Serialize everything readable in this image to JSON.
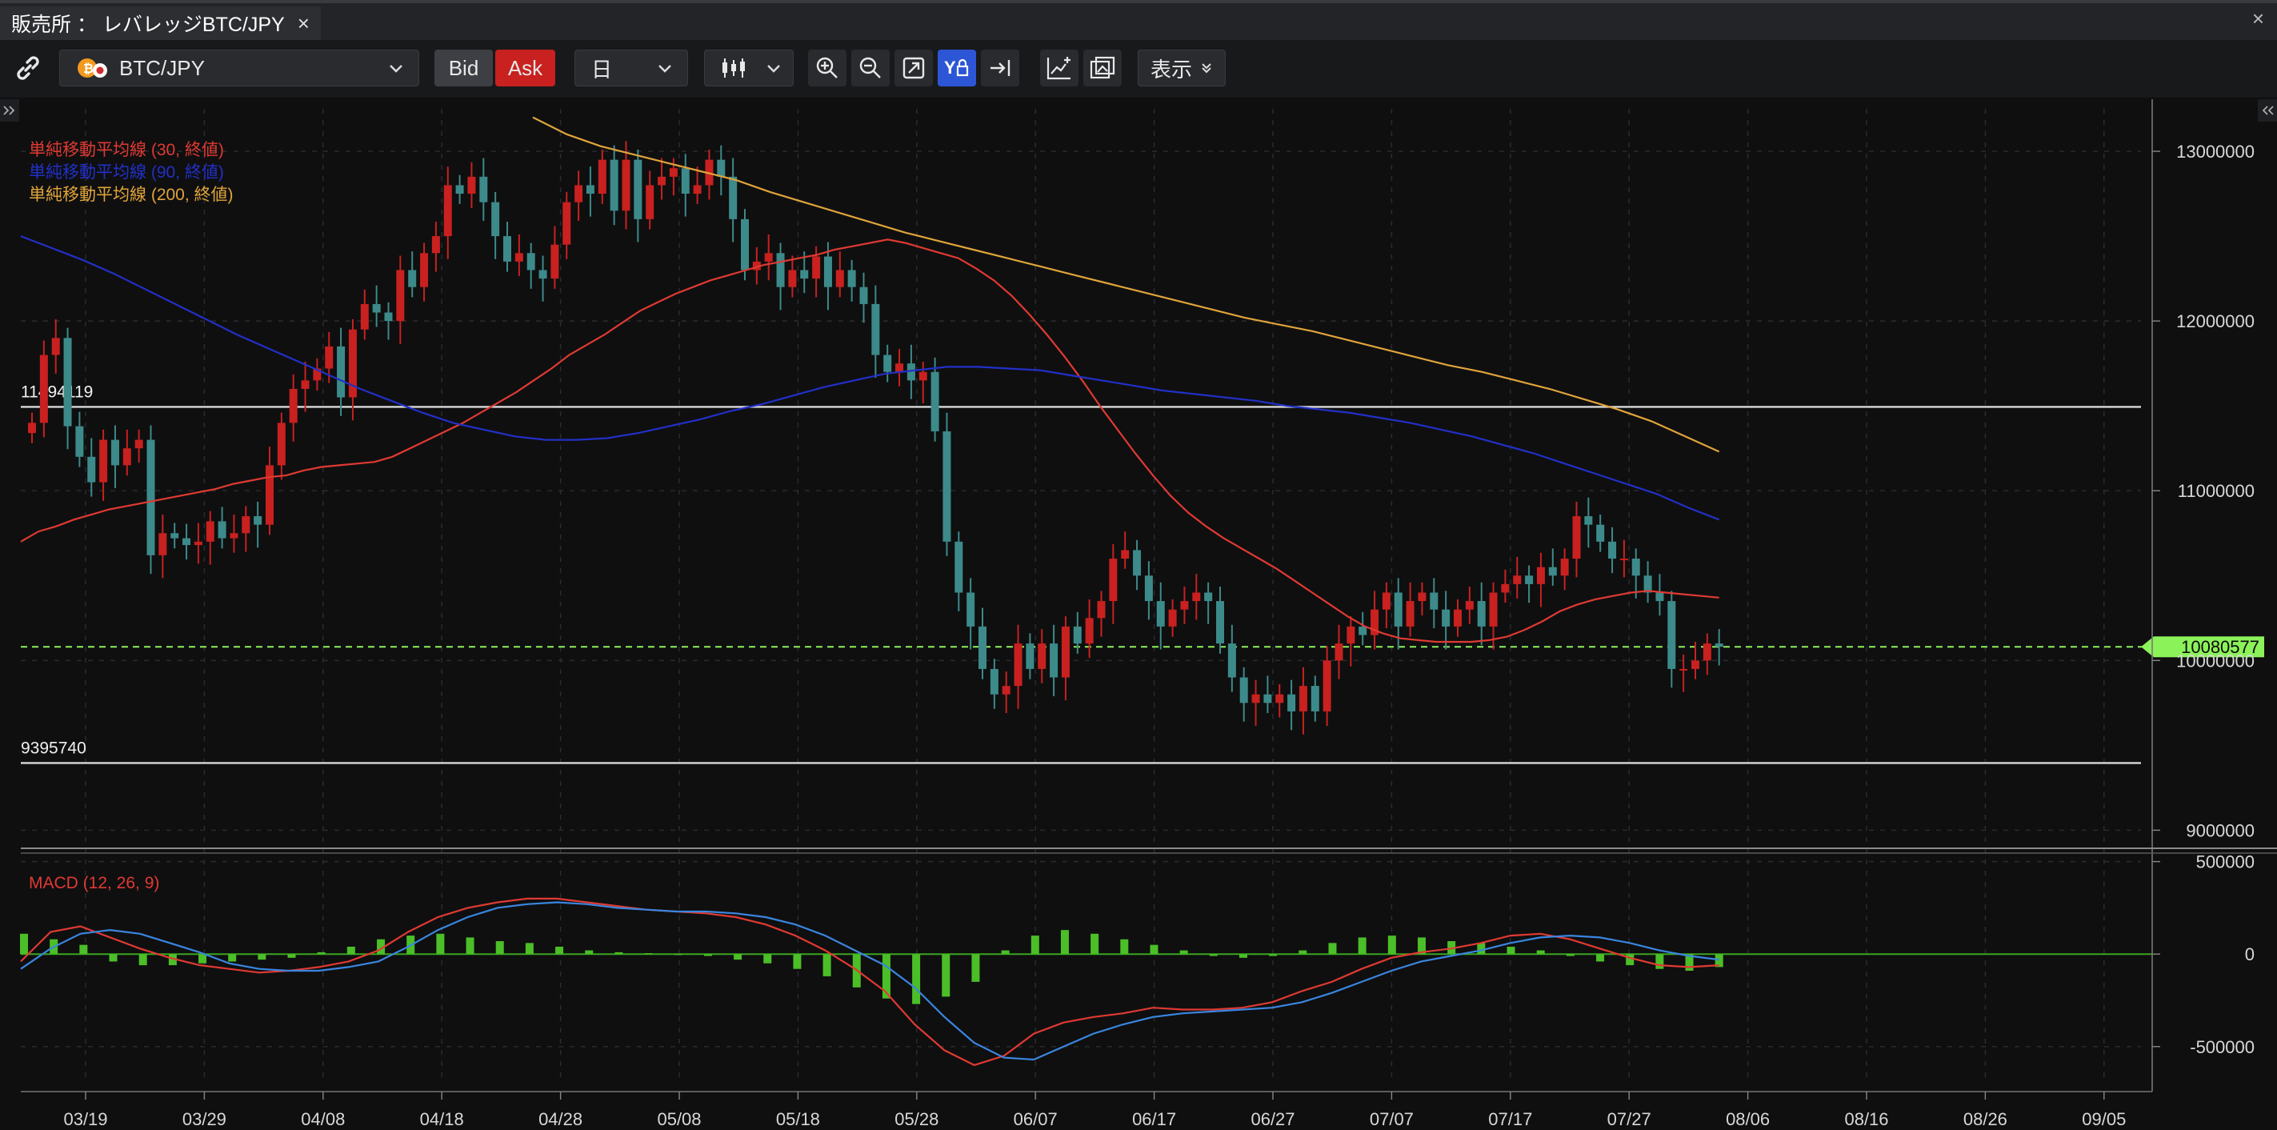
{
  "window": {
    "tab_title": "販売所 ： レバレッジBTC/JPY",
    "tab_close": "×",
    "window_close": "×"
  },
  "toolbar": {
    "symbol": "BTC/JPY",
    "bid_label": "Bid",
    "ask_label": "Ask",
    "period": "日",
    "display_label": "表示",
    "active_color": "#2c56d6",
    "ask_color": "#c8211f"
  },
  "chart_data": [
    {
      "type": "candlestick",
      "x_tick_labels": [
        "03/19",
        "03/29",
        "04/08",
        "04/18",
        "04/28",
        "05/08",
        "05/18",
        "05/28",
        "06/07",
        "06/17",
        "06/27",
        "07/07",
        "07/17",
        "07/27",
        "08/06",
        "08/16",
        "08/26",
        "09/05"
      ],
      "y_tick_labels": [
        "13000000",
        "12000000",
        "11000000",
        "10000000",
        "9000000"
      ],
      "ylim": [
        8950000,
        13250000
      ],
      "grid": true,
      "legend": [
        {
          "label": "単純移動平均線 (30, 終値)",
          "color": "#e03a32"
        },
        {
          "label": "単純移動平均線 (90, 終値)",
          "color": "#2230c8"
        },
        {
          "label": "単純移動平均線 (200, 終値)",
          "color": "#e0a43a"
        }
      ],
      "horizontal_lines": [
        {
          "label": "11494119",
          "value": 11494119
        },
        {
          "label": "9395740",
          "value": 9395740
        }
      ],
      "current_price": {
        "label": "10080577",
        "value": 10080577,
        "color": "#8cf25a"
      },
      "candle_colors": {
        "up": "#c8211f",
        "down": "#3d8a8a"
      },
      "closes": [
        11400000,
        11800000,
        11900000,
        11380000,
        11200000,
        11050000,
        11300000,
        11150000,
        11250000,
        11300000,
        10620000,
        10750000,
        10720000,
        10680000,
        10700000,
        10820000,
        10720000,
        10750000,
        10850000,
        10800000,
        11150000,
        11400000,
        11600000,
        11650000,
        11720000,
        11850000,
        11550000,
        11950000,
        12100000,
        12050000,
        12000000,
        12300000,
        12200000,
        12400000,
        12500000,
        12800000,
        12750000,
        12850000,
        12700000,
        12500000,
        12350000,
        12400000,
        12300000,
        12250000,
        12450000,
        12700000,
        12800000,
        12750000,
        12950000,
        12650000,
        12950000,
        12600000,
        12800000,
        12850000,
        12900000,
        12750000,
        12800000,
        12950000,
        12850000,
        12600000,
        12300000,
        12350000,
        12400000,
        12200000,
        12300000,
        12250000,
        12380000,
        12200000,
        12300000,
        12200000,
        12100000,
        11800000,
        11700000,
        11750000,
        11650000,
        11700000,
        11350000,
        10700000,
        10400000,
        10200000,
        9950000,
        9800000,
        9850000,
        10100000,
        9950000,
        10100000,
        9900000,
        10200000,
        10100000,
        10250000,
        10350000,
        10600000,
        10650000,
        10500000,
        10350000,
        10200000,
        10300000,
        10350000,
        10400000,
        10350000,
        10100000,
        9900000,
        9750000,
        9800000,
        9750000,
        9800000,
        9700000,
        9850000,
        9700000,
        10000000,
        10100000,
        10200000,
        10150000,
        10300000,
        10400000,
        10200000,
        10350000,
        10400000,
        10300000,
        10200000,
        10300000,
        10350000,
        10200000,
        10400000,
        10450000,
        10500000,
        10450000,
        10550000,
        10500000,
        10600000,
        10850000,
        10800000,
        10700000,
        10600000,
        10600000,
        10500000,
        10400000,
        10350000,
        9950000,
        9950000,
        10000000,
        10100000,
        10080577
      ],
      "ma30": [
        10700000,
        10760000,
        10790000,
        10830000,
        10860000,
        10890000,
        10910000,
        10930000,
        10950000,
        10970000,
        10990000,
        11010000,
        11040000,
        11060000,
        11080000,
        11090000,
        11120000,
        11140000,
        11150000,
        11160000,
        11170000,
        11200000,
        11250000,
        11300000,
        11350000,
        11400000,
        11460000,
        11520000,
        11580000,
        11650000,
        11720000,
        11800000,
        11860000,
        11920000,
        11990000,
        12060000,
        12110000,
        12160000,
        12200000,
        12240000,
        12270000,
        12300000,
        12330000,
        12350000,
        12370000,
        12390000,
        12420000,
        12440000,
        12460000,
        12480000,
        12460000,
        12430000,
        12400000,
        12370000,
        12310000,
        12240000,
        12150000,
        12040000,
        11920000,
        11790000,
        11650000,
        11500000,
        11360000,
        11220000,
        11090000,
        10970000,
        10870000,
        10790000,
        10720000,
        10660000,
        10600000,
        10540000,
        10470000,
        10400000,
        10330000,
        10260000,
        10200000,
        10160000,
        10130000,
        10120000,
        10110000,
        10110000,
        10110000,
        10120000,
        10140000,
        10180000,
        10230000,
        10290000,
        10330000,
        10360000,
        10380000,
        10400000,
        10410000,
        10400000,
        10390000,
        10380000,
        10370000
      ],
      "ma90": [
        12500000,
        12430000,
        12360000,
        12280000,
        12190000,
        12100000,
        12010000,
        11920000,
        11840000,
        11760000,
        11680000,
        11600000,
        11530000,
        11460000,
        11400000,
        11360000,
        11320000,
        11300000,
        11300000,
        11310000,
        11340000,
        11380000,
        11420000,
        11470000,
        11510000,
        11560000,
        11610000,
        11650000,
        11690000,
        11710000,
        11730000,
        11730000,
        11720000,
        11710000,
        11680000,
        11650000,
        11620000,
        11590000,
        11570000,
        11550000,
        11530000,
        11500000,
        11480000,
        11460000,
        11430000,
        11400000,
        11360000,
        11320000,
        11270000,
        11220000,
        11160000,
        11100000,
        11040000,
        10980000,
        10900000,
        10830000
      ],
      "ma200": [
        13200000,
        13100000,
        13030000,
        12980000,
        12930000,
        12880000,
        12830000,
        12760000,
        12700000,
        12640000,
        12580000,
        12520000,
        12470000,
        12420000,
        12370000,
        12320000,
        12270000,
        12220000,
        12170000,
        12120000,
        12070000,
        12020000,
        11980000,
        11940000,
        11890000,
        11840000,
        11790000,
        11740000,
        11700000,
        11650000,
        11600000,
        11540000,
        11480000,
        11410000,
        11320000,
        11230000
      ]
    },
    {
      "type": "macd",
      "label": "MACD (12, 26, 9)",
      "y_tick_labels": [
        "500000",
        "0",
        "-500000"
      ],
      "ylim": [
        -700000,
        520000
      ],
      "line_colors": {
        "macd": "#e03a32",
        "signal": "#3a86e0",
        "histogram": "#4bbe28"
      },
      "macd": [
        -40000,
        120000,
        150000,
        90000,
        30000,
        -20000,
        -60000,
        -80000,
        -100000,
        -90000,
        -70000,
        -40000,
        20000,
        120000,
        200000,
        250000,
        280000,
        300000,
        300000,
        280000,
        260000,
        240000,
        230000,
        220000,
        200000,
        160000,
        100000,
        20000,
        -80000,
        -200000,
        -380000,
        -520000,
        -600000,
        -550000,
        -430000,
        -370000,
        -340000,
        -320000,
        -290000,
        -300000,
        -300000,
        -290000,
        -260000,
        -200000,
        -150000,
        -80000,
        -20000,
        10000,
        30000,
        60000,
        100000,
        110000,
        80000,
        30000,
        -20000,
        -60000,
        -70000,
        -60000
      ],
      "signal": [
        -80000,
        30000,
        110000,
        130000,
        110000,
        60000,
        10000,
        -50000,
        -80000,
        -90000,
        -90000,
        -70000,
        -40000,
        40000,
        130000,
        200000,
        250000,
        270000,
        280000,
        270000,
        250000,
        240000,
        230000,
        230000,
        220000,
        200000,
        160000,
        100000,
        20000,
        -60000,
        -180000,
        -340000,
        -480000,
        -560000,
        -570000,
        -500000,
        -430000,
        -380000,
        -340000,
        -320000,
        -310000,
        -300000,
        -290000,
        -260000,
        -210000,
        -150000,
        -90000,
        -40000,
        -10000,
        20000,
        60000,
        90000,
        100000,
        90000,
        60000,
        20000,
        -10000,
        -30000
      ],
      "histogram": [
        110000,
        80000,
        50000,
        -40000,
        -60000,
        -60000,
        -50000,
        -40000,
        -30000,
        -20000,
        10000,
        40000,
        80000,
        100000,
        110000,
        90000,
        70000,
        60000,
        40000,
        20000,
        10000,
        5000,
        -5000,
        -10000,
        -30000,
        -50000,
        -80000,
        -120000,
        -180000,
        -240000,
        -270000,
        -230000,
        -150000,
        20000,
        100000,
        130000,
        110000,
        80000,
        50000,
        20000,
        -10000,
        -20000,
        -10000,
        20000,
        60000,
        90000,
        100000,
        90000,
        70000,
        60000,
        40000,
        20000,
        -10000,
        -40000,
        -60000,
        -80000,
        -90000,
        -70000
      ]
    }
  ]
}
